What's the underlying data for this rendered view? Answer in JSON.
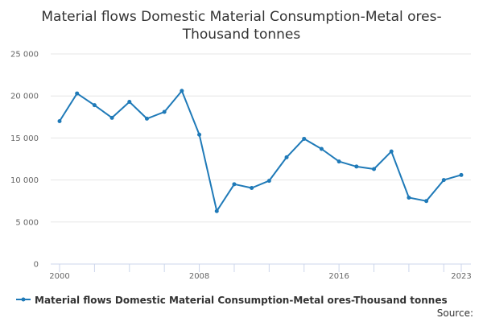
{
  "chart_data": {
    "type": "line",
    "title_lines": [
      "Material flows Domestic Material Consumption-Metal ores-",
      "Thousand tonnes"
    ],
    "xlabel": "",
    "ylabel": "",
    "x": [
      2000,
      2001,
      2002,
      2003,
      2004,
      2005,
      2006,
      2007,
      2008,
      2009,
      2010,
      2011,
      2012,
      2013,
      2014,
      2015,
      2016,
      2017,
      2018,
      2019,
      2020,
      2021,
      2022,
      2023
    ],
    "series": [
      {
        "name": "Material flows Domestic Material Consumption-Metal ores-Thousand tonnes",
        "color": "#1f7ab8",
        "values": [
          17000,
          20300,
          18900,
          17400,
          19300,
          17300,
          18100,
          20600,
          15400,
          6300,
          9500,
          9050,
          9900,
          12700,
          14900,
          13700,
          12200,
          11600,
          11300,
          13400,
          7900,
          7500,
          10000,
          10600
        ]
      }
    ],
    "xlim": [
      2000,
      2023
    ],
    "ylim": [
      0,
      25000
    ],
    "x_tick_labels": [
      "2000",
      "2008",
      "2016",
      "2023"
    ],
    "y_tick_labels": [
      "0",
      "5 000",
      "10 000",
      "15 000",
      "20 000",
      "25 000"
    ],
    "legend_position": "bottom-center",
    "grid": true,
    "source": "Source:"
  }
}
